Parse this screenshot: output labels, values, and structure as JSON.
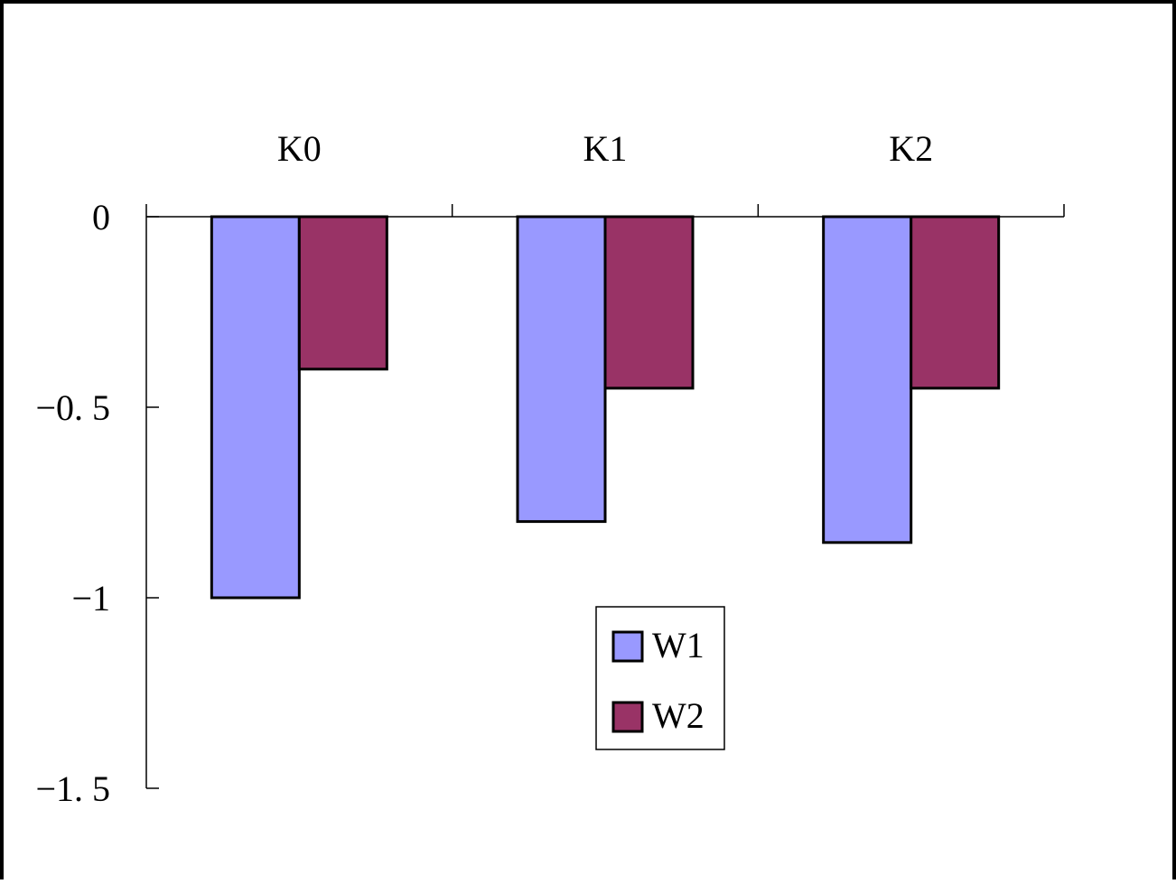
{
  "chart_data": {
    "type": "bar",
    "categories": [
      "K0",
      "K1",
      "K2"
    ],
    "series": [
      {
        "name": "W1",
        "values": [
          -1.0,
          -0.8,
          -0.855
        ],
        "color": "#9999ff"
      },
      {
        "name": "W2",
        "values": [
          -0.4,
          -0.45,
          -0.45
        ],
        "color": "#993366"
      }
    ],
    "ylim": [
      -1.5,
      0
    ],
    "y_ticks": [
      0,
      -0.5,
      -1,
      -1.5
    ],
    "y_tick_labels": [
      "0",
      "−0. 5",
      "−1",
      "−1. 5"
    ],
    "category_axis_position": "top",
    "grid": false,
    "legend_position": "bottom-center",
    "title": "",
    "xlabel": "",
    "ylabel": ""
  }
}
